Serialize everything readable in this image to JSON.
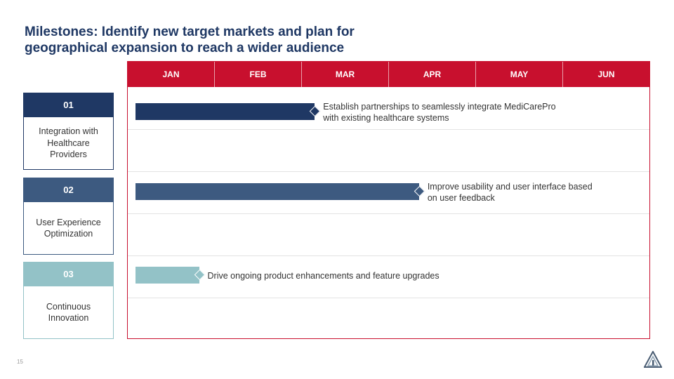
{
  "slide": {
    "title_lines": [
      "Milestones: Identify new target markets and plan for",
      "geographical expansion to reach a wider audience"
    ],
    "page_number": "15"
  },
  "timeline": {
    "months": [
      "JAN",
      "FEB",
      "MAR",
      "APR",
      "MAY",
      "JUN"
    ],
    "colors": {
      "header": "#c8102e",
      "row1": "#1f3864",
      "row2": "#3d5a80",
      "row3": "#93c2c7"
    },
    "rows": [
      {
        "number": "01",
        "name": "Integration with Healthcare Providers",
        "task_lines": [
          "Establish partnerships to seamlessly integrate MediCarePro",
          "with existing healthcare systems"
        ],
        "progress_months": 2.15
      },
      {
        "number": "02",
        "name": "User Experience Optimization",
        "task_lines": [
          "Improve usability and user interface based",
          "on user feedback"
        ],
        "progress_months": 3.35
      },
      {
        "number": "03",
        "name": "Continuous Innovation",
        "task_lines": [
          "Drive ongoing product enhancements and feature upgrades"
        ],
        "progress_months": 0.82
      }
    ]
  },
  "icons": {
    "logo": "triangle-logo-icon"
  }
}
